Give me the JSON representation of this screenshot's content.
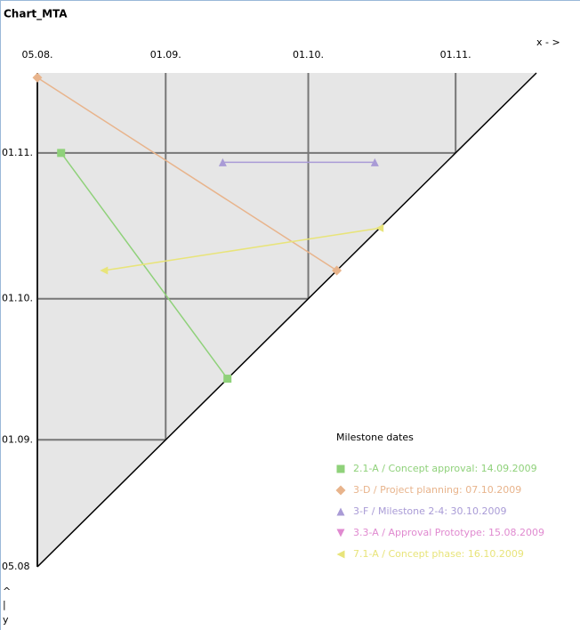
{
  "chart_data": {
    "type": "milestone-trend",
    "title": "Chart_MTA",
    "x_label": "x - >",
    "y_label": [
      "^",
      "|",
      "y"
    ],
    "xlim": [
      "2009-08-05",
      "2009-11-18"
    ],
    "ylim": [
      "2009-08-05",
      "2009-11-18"
    ],
    "xticks": [
      {
        "value": "2009-08-05",
        "label": "05.08."
      },
      {
        "value": "2009-09-01",
        "label": "01.09."
      },
      {
        "value": "2009-10-01",
        "label": "01.10."
      },
      {
        "value": "2009-11-01",
        "label": "01.11."
      }
    ],
    "yticks": [
      {
        "value": "2009-08-05",
        "label": "05.08"
      },
      {
        "value": "2009-09-01",
        "label": "01.09."
      },
      {
        "value": "2009-10-01",
        "label": "01.10."
      },
      {
        "value": "2009-11-01",
        "label": "01.11."
      }
    ],
    "grid": true,
    "legend_title": "Milestone dates",
    "series": [
      {
        "name": "2.1-A / Concept approval: 14.09.2009",
        "color": "#8fd17a",
        "marker": "square",
        "x": [
          "2009-08-10",
          "2009-09-14"
        ],
        "values": [
          "2009-11-01",
          "2009-09-14"
        ]
      },
      {
        "name": "3-D / Project planning: 07.10.2009",
        "color": "#e8b48c",
        "marker": "diamond",
        "x": [
          "2009-08-05",
          "2009-10-07"
        ],
        "values": [
          "2009-11-17",
          "2009-10-07"
        ]
      },
      {
        "name": "3-F / Milestone 2-4: 30.10.2009",
        "color": "#a99bd6",
        "marker": "triangle-up",
        "x": [
          "2009-09-13",
          "2009-10-15"
        ],
        "values": [
          "2009-10-30",
          "2009-10-30"
        ]
      },
      {
        "name": "3.3-A / Approval Prototype: 15.08.2009",
        "color": "#e08ad0",
        "marker": "triangle-down",
        "x": [],
        "values": []
      },
      {
        "name": "7.1-A / Concept phase: 16.10.2009",
        "color": "#e8e47a",
        "marker": "triangle-left",
        "x": [
          "2009-08-19",
          "2009-10-16"
        ],
        "values": [
          "2009-10-07",
          "2009-10-16"
        ]
      }
    ]
  }
}
